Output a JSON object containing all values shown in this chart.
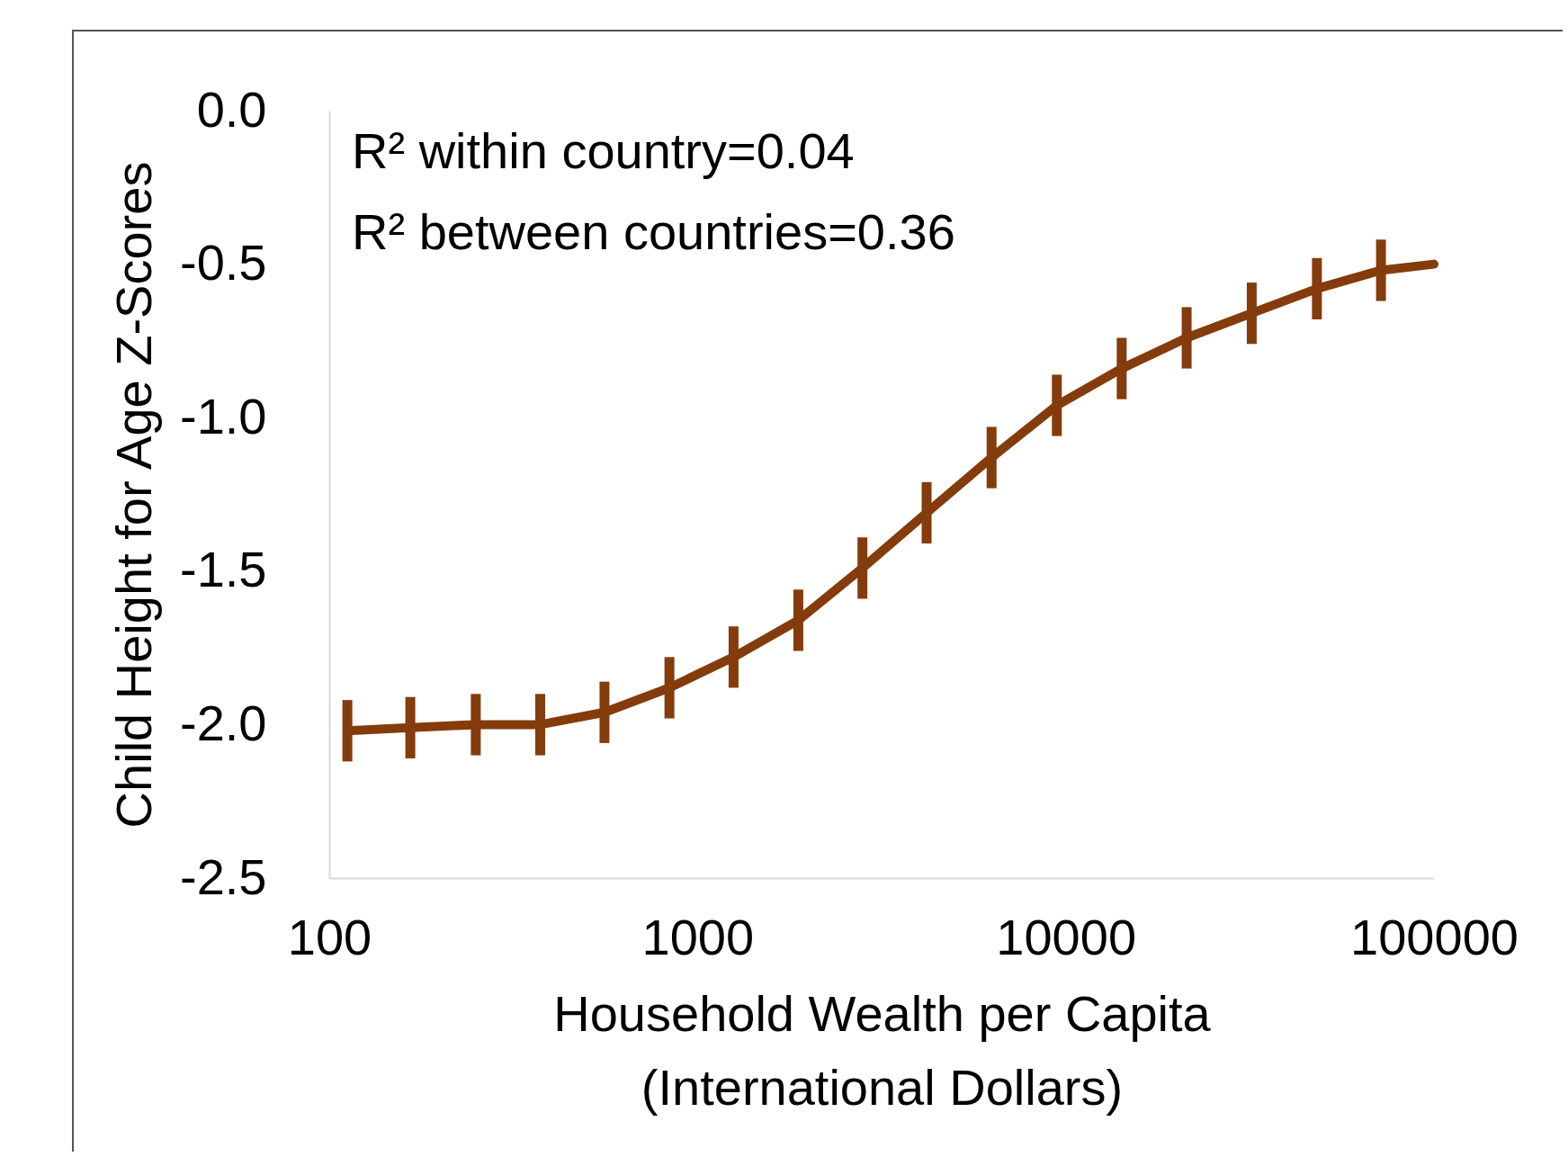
{
  "chart_data": {
    "type": "line",
    "xlabel": "Household Wealth per Capita\n(International Dollars)",
    "ylabel": "Child Height for Age Z-Scores",
    "x": [
      112,
      166,
      250,
      374,
      559,
      839,
      1253,
      1879,
      2805,
      4190,
      6290,
      9460,
      14190,
      21300,
      32000,
      48100,
      71800,
      100000
    ],
    "series": [
      {
        "color": "#843c0c",
        "values": [
          -2.02,
          -2.01,
          -2.0,
          -2.0,
          -1.96,
          -1.88,
          -1.78,
          -1.66,
          -1.49,
          -1.31,
          -1.13,
          -0.96,
          -0.84,
          -0.74,
          -0.66,
          -0.58,
          -0.52,
          -0.5
        ],
        "errors": [
          0.1,
          0.1,
          0.1,
          0.1,
          0.1,
          0.1,
          0.1,
          0.1,
          0.1,
          0.1,
          0.1,
          0.1,
          0.1,
          0.1,
          0.1,
          0.1,
          0.1,
          null
        ]
      }
    ],
    "log": "x",
    "xlim": [
      100,
      100000
    ],
    "xticks": [
      100,
      1000,
      10000,
      100000
    ],
    "ylim": [
      -2.5,
      0
    ],
    "yticks": [
      {
        "value": -2.5,
        "label": "-2.5"
      },
      {
        "value": -2,
        "label": "-2.0"
      },
      {
        "value": -1.5,
        "label": "-1.5"
      },
      {
        "value": -1,
        "label": "-1.0"
      },
      {
        "value": -0.5,
        "label": "-0.5"
      },
      {
        "value": 0,
        "label": "0.0"
      }
    ],
    "grid": false,
    "marker": "none",
    "line_style": "solid",
    "annotations": [
      "R² within country=0.04",
      "R² between countries=0.36"
    ]
  }
}
